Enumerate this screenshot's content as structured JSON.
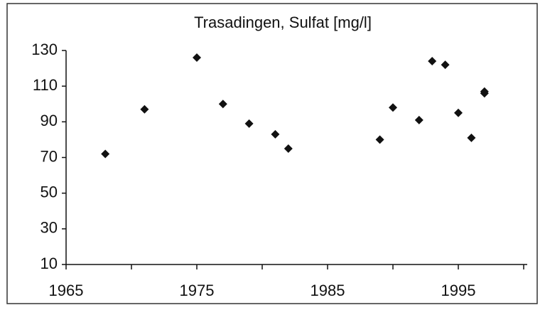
{
  "chart_data": {
    "type": "scatter",
    "title": "Trasadingen, Sulfat [mg/l]",
    "x": [
      1968,
      1971,
      1975,
      1977,
      1979,
      1981,
      1982,
      1989,
      1990,
      1992,
      1993,
      1994,
      1995,
      1996,
      1997,
      1997
    ],
    "values": [
      72,
      97,
      126,
      100,
      89,
      83,
      75,
      80,
      98,
      91,
      124,
      122,
      95,
      81,
      107,
      106
    ],
    "color": "#111111",
    "xlim": [
      1965,
      2000
    ],
    "xticks": [
      1965,
      1975,
      1985,
      1995
    ],
    "xminorticks": [
      1970,
      1980,
      1990,
      2000
    ],
    "ylim": [
      10,
      130
    ],
    "yticks": [
      10,
      30,
      50,
      70,
      90,
      110,
      130
    ],
    "grid": false
  }
}
